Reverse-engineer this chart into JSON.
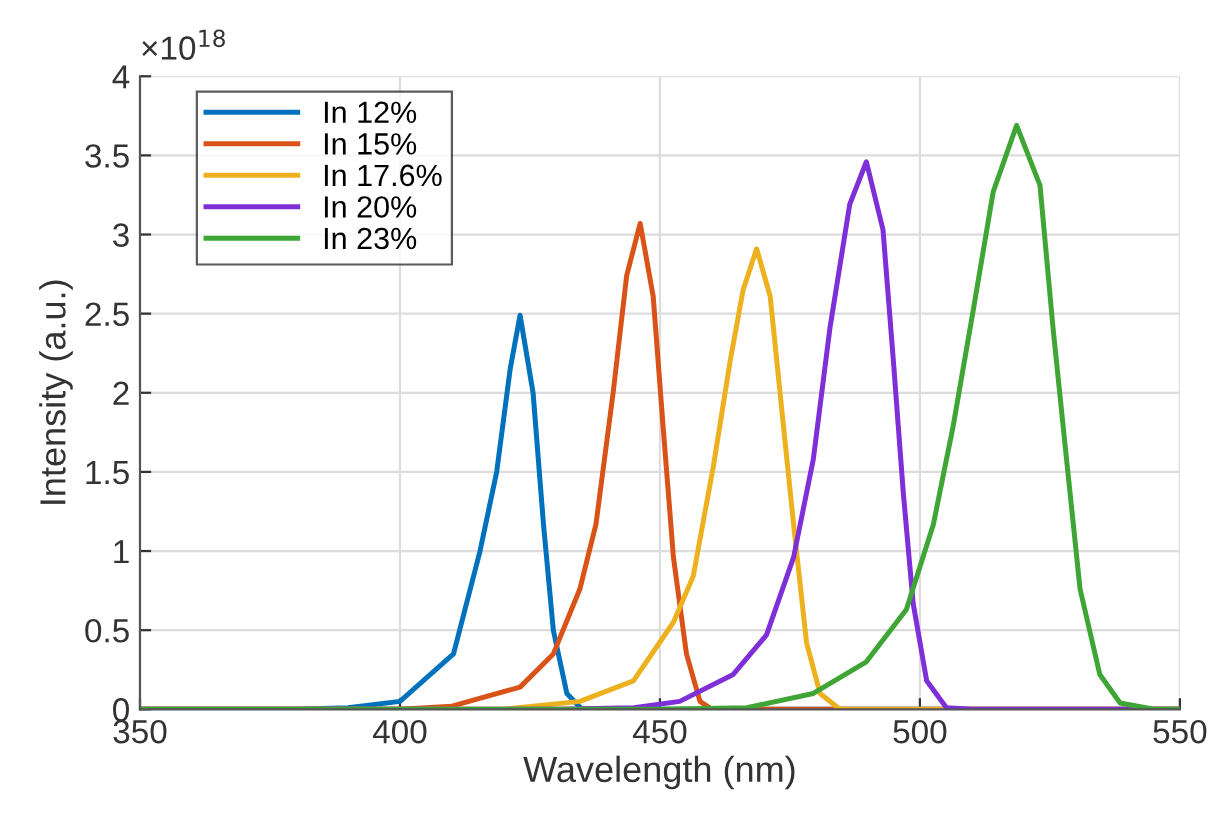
{
  "chart_data": {
    "type": "line",
    "xlabel": "Wavelength (nm)",
    "ylabel": "Intensity (a.u.)",
    "annotations": [
      "×10$^{18}$"
    ],
    "xlim": [
      350,
      550
    ],
    "xticks": [
      350,
      400,
      450,
      500,
      550
    ],
    "ylim": [
      0,
      4
    ],
    "yticks": [
      0,
      0.5,
      1,
      1.5,
      2,
      2.5,
      3,
      3.5,
      4
    ],
    "grid": true,
    "legend": "top left",
    "marker": "none",
    "line_style": "solid",
    "series": [
      {
        "name": "In 12%",
        "color": "#0072bd",
        "x": [
          350,
          380,
          390,
          400,
          410.3,
          415.4,
          418.6,
          421.2,
          423.1,
          425.6,
          427.6,
          429.5,
          432.1,
          435,
          550
        ],
        "values": [
          0,
          0,
          0.01,
          0.05,
          0.35,
          1.0,
          1.5,
          2.15,
          2.49,
          2.0,
          1.17,
          0.5,
          0.1,
          0,
          0
        ]
      },
      {
        "name": "In 15%",
        "color": "#d95319",
        "x": [
          350,
          400,
          410,
          423.1,
          429.5,
          434.6,
          437.7,
          441,
          443.6,
          446.2,
          448.7,
          450.6,
          452.6,
          455.1,
          457.7,
          460,
          550
        ],
        "values": [
          0,
          0,
          0.02,
          0.14,
          0.35,
          0.76,
          1.17,
          2.0,
          2.74,
          3.07,
          2.61,
          1.79,
          0.96,
          0.35,
          0.05,
          0,
          0
        ]
      },
      {
        "name": "In 17.6%",
        "color": "#edb120",
        "x": [
          350,
          420,
          434.6,
          444.9,
          452.6,
          456.4,
          460.3,
          463.5,
          466,
          468.6,
          471.2,
          473.1,
          475.7,
          478.2,
          480.8,
          484.6,
          550
        ],
        "values": [
          0,
          0,
          0.05,
          0.18,
          0.55,
          0.84,
          1.54,
          2.2,
          2.65,
          2.91,
          2.61,
          2.0,
          1.17,
          0.42,
          0.1,
          0,
          0
        ]
      },
      {
        "name": "In 20%",
        "color": "#7e2fd8",
        "x": [
          350,
          430,
          445,
          453.8,
          464.1,
          470.5,
          475.7,
          479.5,
          482.7,
          486.5,
          489.7,
          492.9,
          494.9,
          496.8,
          498.7,
          501.3,
          505.1,
          510,
          550
        ],
        "values": [
          0,
          0,
          0.01,
          0.05,
          0.22,
          0.47,
          0.96,
          1.58,
          2.41,
          3.19,
          3.46,
          3.03,
          2.2,
          1.37,
          0.67,
          0.18,
          0.01,
          0,
          0
        ]
      },
      {
        "name": "In 23%",
        "color": "#3fa535",
        "x": [
          350,
          450,
          466.7,
          479.5,
          489.7,
          497.4,
          502.6,
          506.4,
          510.3,
          514.1,
          518.6,
          523.1,
          525.6,
          528.2,
          530.8,
          534.6,
          538.5,
          545,
          550
        ],
        "values": [
          0,
          0,
          0.01,
          0.1,
          0.3,
          0.63,
          1.17,
          1.79,
          2.53,
          3.27,
          3.69,
          3.31,
          2.41,
          1.58,
          0.76,
          0.22,
          0.04,
          0,
          0
        ]
      }
    ]
  }
}
